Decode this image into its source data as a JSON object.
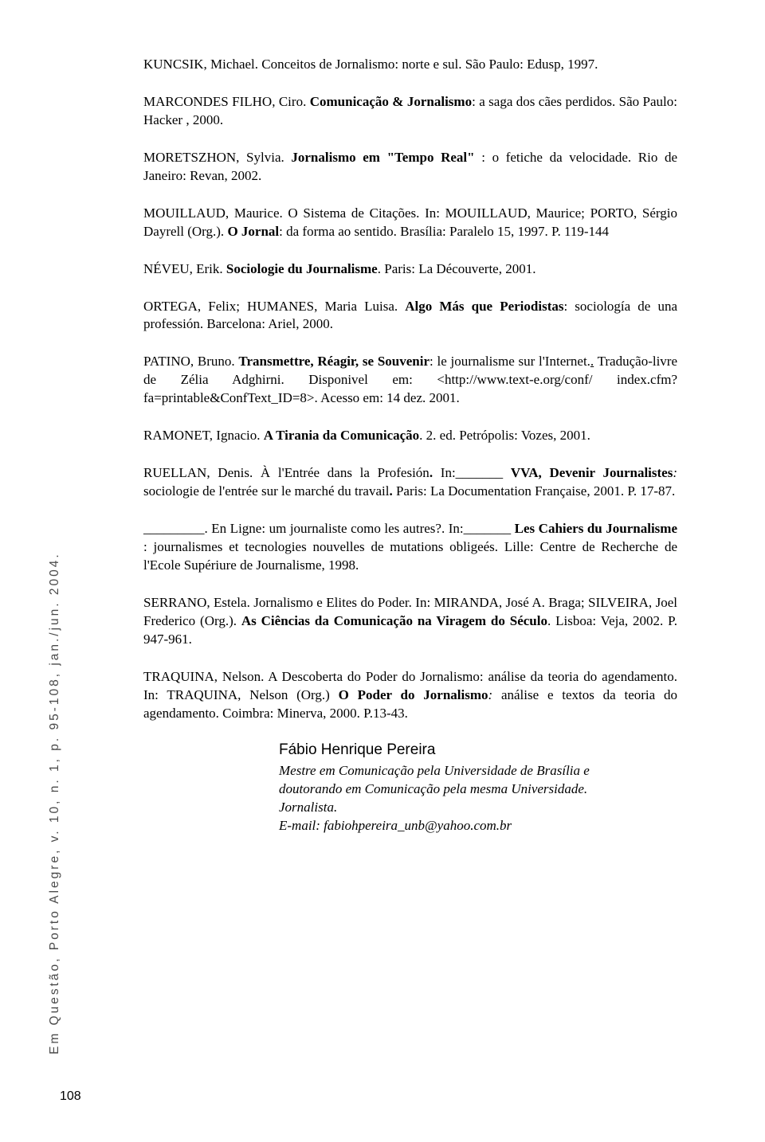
{
  "references": [
    {
      "html": "KUNCSIK, Michael. Conceitos de Jornalismo: norte e sul. São Paulo: Edusp, 1997."
    },
    {
      "html": "MARCONDES FILHO, Ciro. <span class=\"bold\">Comunicação & Jornalismo</span>: a saga dos cães perdidos. São Paulo: Hacker , 2000."
    },
    {
      "html": "MORETSZHON, Sylvia. <span class=\"bold\">Jornalismo em \"Tempo Real\"</span> : o fetiche da velocidade. Rio de Janeiro: Revan, 2002."
    },
    {
      "html": "MOUILLAUD, Maurice. O Sistema de Citações. In: MOUILLAUD, Maurice; PORTO, Sérgio Dayrell (Org.). <span class=\"bold\">O Jornal</span>: da forma ao sentido. Brasília: Paralelo 15, 1997. P. 119-144"
    },
    {
      "html": "NÉVEU, Erik. <span class=\"bold\">Sociologie du Journalisme</span>. Paris: La Découverte, 2001."
    },
    {
      "html": "ORTEGA, Felix; HUMANES, Maria Luisa. <span class=\"bold\">Algo Más que Periodistas</span>: sociología de una professión. Barcelona: Ariel, 2000."
    },
    {
      "html": "PATINO, Bruno. <span class=\"bold\">Transmettre, Réagir, se Souvenir</span>: le journalisme sur l'Internet.<u>.</u> Tradução-livre de Zélia Adghirni. Disponivel em: &lt;http://www.text-e.org/conf/ index.cfm?fa=printable&ConfText_ID=8&gt;. Acesso em: 14 dez. 2001."
    },
    {
      "html": "RAMONET, Ignacio. <span class=\"bold\">A Tirania da Comunicação</span>. 2. ed. Petrópolis: Vozes, 2001."
    },
    {
      "html": "RUELLAN, Denis. À l'Entrée dans la Profesión<span class=\"bold\">.</span> In:_______ <span class=\"bold\">VVA, Devenir Journalistes</span><span style=\"font-style: italic;\">:</span> sociologie de l'entrée sur le marché du travail<span class=\"bold\">.</span> Paris: La Documentation Française, 2001. P. 17-87."
    },
    {
      "html": "_________. En Ligne: um journaliste como les autres?. In:_______ <span class=\"bold\">Les Cahiers du Journalisme</span> : journalismes et tecnologies nouvelles de mutations obligeés. Lille: Centre de Recherche de l'Ecole Supériure de Journalisme, 1998."
    },
    {
      "html": "SERRANO, Estela. Jornalismo e Elites do Poder. In: MIRANDA, José A. Braga; SILVEIRA, Joel Frederico (Org.). <span class=\"bold\">As Ciências da Comunicação na Viragem do Século</span>. Lisboa: Veja, 2002. P. 947-961."
    },
    {
      "html": "TRAQUINA, Nelson. A Descoberta do Poder do Jornalismo: análise da teoria do agendamento. In: TRAQUINA, Nelson (Org.) <span class=\"bold\">O Poder do Jornalismo</span><span style=\"font-style: italic;\">:</span> análise e textos da teoria do agendamento. Coimbra: Minerva, 2000. P.13-43."
    }
  ],
  "author": {
    "name": "Fábio Henrique Pereira",
    "bio_line1": "Mestre em Comunicação pela Universidade de Brasília e",
    "bio_line2": "doutorando em Comunicação pela mesma Universidade.",
    "bio_line3": "Jornalista.",
    "bio_line4": "E-mail: fabiohpereira_unb@yahoo.com.br"
  },
  "sideways": "Em Questão, Porto Alegre, v. 10, n. 1, p. 95-108, jan./jun. 2004.",
  "page_number": "108"
}
